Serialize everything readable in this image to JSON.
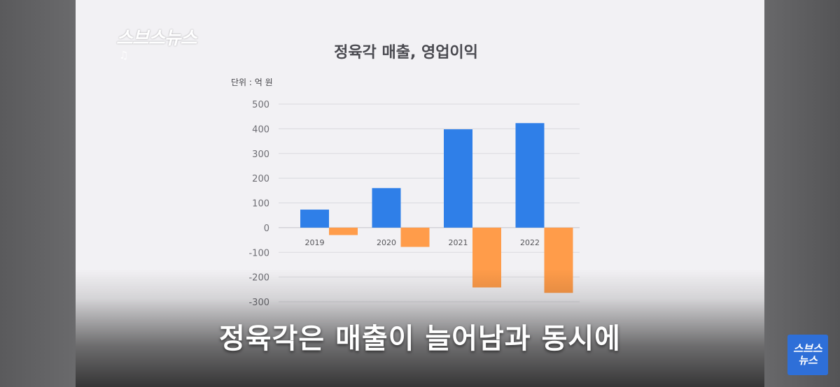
{
  "broadcast": {
    "logo": "스브스뉴스",
    "note_icon": "music-note-icon",
    "subtitle": "정육각은 매출이 늘어남과 동시에",
    "badge_line1": "스브스",
    "badge_line2": "뉴스"
  },
  "colors": {
    "revenue": "#2f7fe8",
    "operating_profit": "#ff9c4a",
    "grid": "#d9d9de",
    "axis_text": "#6e6e74"
  },
  "chart_data": {
    "type": "bar",
    "title": "정육각 매출, 영업이익",
    "unit_label": "단위 : 억 원",
    "categories": [
      "2019",
      "2020",
      "2021",
      "2022"
    ],
    "series": [
      {
        "name": "매출",
        "values": [
          73,
          160,
          398,
          423
        ]
      },
      {
        "name": "영업이익",
        "values": [
          -30,
          -78,
          -242,
          -264
        ]
      }
    ],
    "ylim": [
      -300,
      500
    ],
    "yticks": [
      500,
      400,
      300,
      200,
      100,
      0,
      -100,
      -200,
      -300
    ],
    "ytick_labels": [
      "500",
      "400",
      "300",
      "200",
      "100",
      "0",
      "-100",
      "-200",
      "-300"
    ],
    "grid": true
  }
}
